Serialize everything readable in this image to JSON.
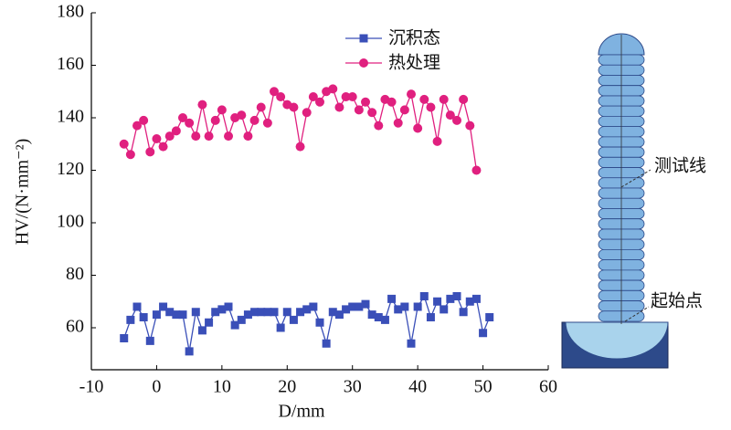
{
  "chart_data": {
    "type": "line",
    "x_label": "D/mm",
    "y_label": "HV/(N·mm⁻²)",
    "xlim": [
      -10,
      60
    ],
    "xticks": [
      -10,
      0,
      10,
      20,
      30,
      40,
      50,
      60
    ],
    "ylim": [
      44,
      180
    ],
    "yticks": [
      60,
      80,
      100,
      120,
      140,
      160,
      180
    ],
    "grid": false,
    "annotations": [
      "测试线",
      "起始点"
    ],
    "series": [
      {
        "name": "沉积态",
        "color": "#3a4fb8",
        "marker": "square",
        "x": [
          -5,
          -4,
          -3,
          -2,
          -1,
          0,
          1,
          2,
          3,
          4,
          5,
          6,
          7,
          8,
          9,
          10,
          11,
          12,
          13,
          14,
          15,
          16,
          17,
          18,
          19,
          20,
          21,
          22,
          23,
          24,
          25,
          26,
          27,
          28,
          29,
          30,
          31,
          32,
          33,
          34,
          35,
          36,
          37,
          38,
          39,
          40,
          41,
          42,
          43,
          44,
          45,
          46,
          47,
          48,
          49,
          50,
          51
        ],
        "values": [
          56,
          63,
          68,
          64,
          55,
          65,
          68,
          66,
          65,
          65,
          51,
          66,
          59,
          62,
          66,
          67,
          68,
          61,
          63,
          65,
          66,
          66,
          66,
          66,
          60,
          66,
          63,
          66,
          67,
          68,
          62,
          54,
          66,
          65,
          67,
          68,
          68,
          69,
          65,
          64,
          63,
          71,
          67,
          68,
          54,
          68,
          72,
          64,
          70,
          67,
          71,
          72,
          66,
          70,
          71,
          58,
          64
        ]
      },
      {
        "name": "热处理",
        "color": "#e0207f",
        "marker": "circle",
        "x": [
          -5,
          -4,
          -3,
          -2,
          -1,
          0,
          1,
          2,
          3,
          4,
          5,
          6,
          7,
          8,
          9,
          10,
          11,
          12,
          13,
          14,
          15,
          16,
          17,
          18,
          19,
          20,
          21,
          22,
          23,
          24,
          25,
          26,
          27,
          28,
          29,
          30,
          31,
          32,
          33,
          34,
          35,
          36,
          37,
          38,
          39,
          40,
          41,
          42,
          43,
          44,
          45,
          46,
          47,
          48,
          49
        ],
        "values": [
          130,
          126,
          137,
          139,
          127,
          132,
          129,
          133,
          135,
          140,
          138,
          133,
          145,
          133,
          139,
          143,
          133,
          140,
          141,
          133,
          139,
          144,
          138,
          150,
          148,
          145,
          144,
          129,
          142,
          148,
          146,
          150,
          151,
          144,
          148,
          148,
          143,
          146,
          142,
          137,
          147,
          146,
          138,
          143,
          149,
          136,
          147,
          144,
          131,
          147,
          141,
          139,
          147,
          137,
          120
        ]
      }
    ]
  }
}
